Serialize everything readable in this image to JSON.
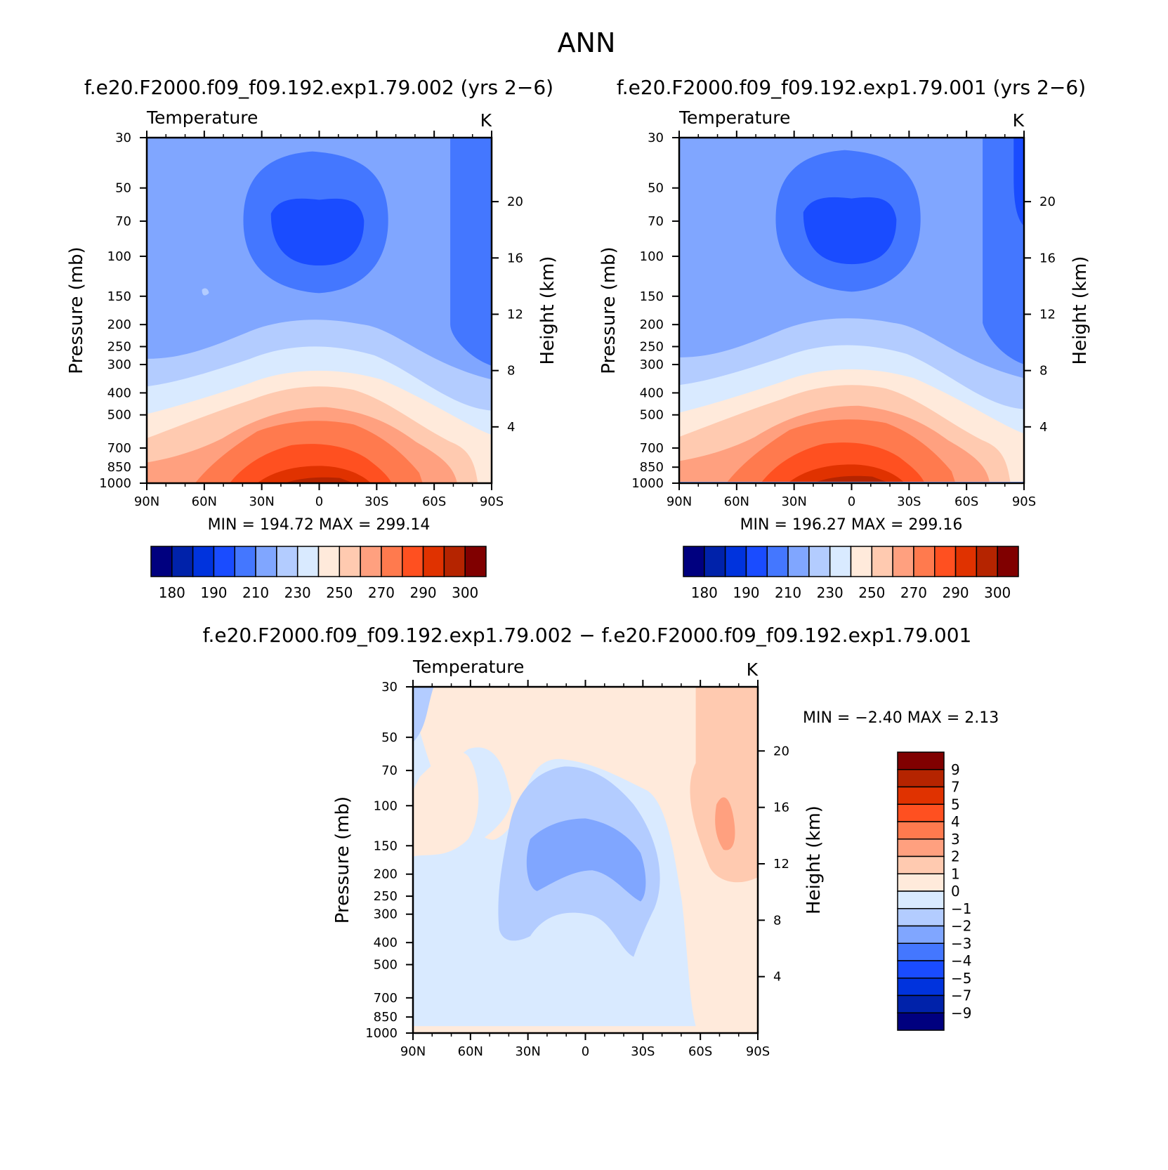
{
  "figure": {
    "title": "ANN",
    "diff_title": "f.e20.F2000.f09_f09.192.exp1.79.002 − f.e20.F2000.f09_f09.192.exp1.79.001"
  },
  "panels": [
    {
      "id": "case1",
      "title": "f.e20.F2000.f09_f09.192.exp1.79.002 (yrs 2−6)",
      "variable": "Temperature",
      "units": "K",
      "ylabel": "Pressure (mb)",
      "ylabel_right": "Height (km)",
      "stats": "MIN = 194.72   MAX = 299.14",
      "kind": "abs"
    },
    {
      "id": "case2",
      "title": "f.e20.F2000.f09_f09.192.exp1.79.001 (yrs 2−6)",
      "variable": "Temperature",
      "units": "K",
      "ylabel": "Pressure (mb)",
      "ylabel_right": "Height (km)",
      "stats": "MIN = 196.27   MAX = 299.16",
      "kind": "abs"
    },
    {
      "id": "diff",
      "title": "",
      "variable": "Temperature",
      "units": "K",
      "ylabel": "Pressure (mb)",
      "ylabel_right": "Height (km)",
      "stats": "MIN =   −2.40   MAX =    2.13",
      "kind": "diff"
    }
  ],
  "colors": {
    "abs": [
      "#00007f",
      "#0022aa",
      "#0033dd",
      "#1a4cff",
      "#4477ff",
      "#80a6ff",
      "#b3ccff",
      "#d9eaff",
      "#ffeadb",
      "#ffcab0",
      "#ffa07f",
      "#ff7a4e",
      "#ff5020",
      "#e03200",
      "#b52400",
      "#800000"
    ],
    "diff": [
      "#00007f",
      "#0022aa",
      "#0033dd",
      "#1a4cff",
      "#4477ff",
      "#80a6ff",
      "#b3ccff",
      "#d9eaff",
      "#ffeadb",
      "#ffcab0",
      "#ffa07f",
      "#ff7a4e",
      "#ff5020",
      "#e03200",
      "#b52400",
      "#800000"
    ]
  },
  "chart_data": [
    {
      "type": "contour",
      "panel": "case1",
      "title": "f.e20.F2000.f09_f09.192.exp1.79.002 (yrs 2−6)",
      "xlabel": "",
      "ylabel": "Pressure (mb)",
      "y2label": "Height (km)",
      "xticks": [
        "90N",
        "60N",
        "30N",
        "0",
        "30S",
        "60S",
        "90S"
      ],
      "yticks": [
        30,
        50,
        70,
        100,
        150,
        200,
        250,
        300,
        400,
        500,
        700,
        850,
        1000
      ],
      "y2ticks": [
        4,
        8,
        12,
        16,
        20
      ],
      "levels": [
        180,
        185,
        190,
        200,
        210,
        220,
        230,
        240,
        250,
        260,
        270,
        280,
        290,
        295,
        300
      ],
      "level_labels": [
        "180",
        "190",
        "210",
        "230",
        "250",
        "270",
        "290",
        "300"
      ],
      "min": 194.72,
      "max": 299.14
    },
    {
      "type": "contour",
      "panel": "case2",
      "title": "f.e20.F2000.f09_f09.192.exp1.79.001 (yrs 2−6)",
      "xlabel": "",
      "ylabel": "Pressure (mb)",
      "y2label": "Height (km)",
      "xticks": [
        "90N",
        "60N",
        "30N",
        "0",
        "30S",
        "60S",
        "90S"
      ],
      "yticks": [
        30,
        50,
        70,
        100,
        150,
        200,
        250,
        300,
        400,
        500,
        700,
        850,
        1000
      ],
      "y2ticks": [
        4,
        8,
        12,
        16,
        20
      ],
      "levels": [
        180,
        185,
        190,
        200,
        210,
        220,
        230,
        240,
        250,
        260,
        270,
        280,
        290,
        295,
        300
      ],
      "level_labels": [
        "180",
        "190",
        "210",
        "230",
        "250",
        "270",
        "290",
        "300"
      ],
      "min": 196.27,
      "max": 299.16
    },
    {
      "type": "contour",
      "panel": "diff",
      "title": "f.e20.F2000.f09_f09.192.exp1.79.002 − f.e20.F2000.f09_f09.192.exp1.79.001",
      "xlabel": "",
      "ylabel": "Pressure (mb)",
      "y2label": "Height (km)",
      "xticks": [
        "90N",
        "60N",
        "30N",
        "0",
        "30S",
        "60S",
        "90S"
      ],
      "yticks": [
        30,
        50,
        70,
        100,
        150,
        200,
        250,
        300,
        400,
        500,
        700,
        850,
        1000
      ],
      "y2ticks": [
        4,
        8,
        12,
        16,
        20
      ],
      "levels": [
        -9,
        -7,
        -5,
        -4,
        -3,
        -2,
        -1,
        0,
        1,
        2,
        3,
        4,
        5,
        7,
        9
      ],
      "level_labels": [
        "9",
        "7",
        "5",
        "4",
        "3",
        "2",
        "1",
        "0",
        "−1",
        "−2",
        "−3",
        "−4",
        "−5",
        "−7",
        "−9"
      ],
      "min": -2.4,
      "max": 2.13
    }
  ]
}
